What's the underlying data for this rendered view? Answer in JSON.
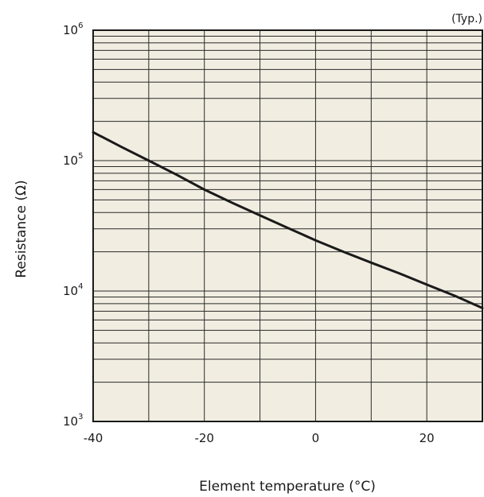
{
  "chart_data": {
    "type": "line",
    "note": "(Typ.)",
    "xlabel": "Element temperature (°C)",
    "ylabel": "Resistance (Ω)",
    "xlim": [
      -40,
      30
    ],
    "ylim": [
      1000,
      1000000
    ],
    "y_scale": "log",
    "grid": true,
    "background_color": "#f1ede1",
    "line_color": "#1a1a1a",
    "x_ticks": [
      {
        "value": -40,
        "label": "-40"
      },
      {
        "value": -20,
        "label": "-20"
      },
      {
        "value": 0,
        "label": "0"
      },
      {
        "value": 20,
        "label": "20"
      }
    ],
    "y_ticks": [
      {
        "value": 1000,
        "base": "10",
        "exp": "3"
      },
      {
        "value": 10000,
        "base": "10",
        "exp": "4"
      },
      {
        "value": 100000,
        "base": "10",
        "exp": "5"
      },
      {
        "value": 1000000,
        "base": "10",
        "exp": "6"
      }
    ],
    "series": [
      {
        "x": [
          -40,
          -35,
          -30,
          -25,
          -20,
          -15,
          -10,
          -5,
          0,
          5,
          10,
          15,
          20,
          25,
          30
        ],
        "y": [
          165000,
          128000,
          100000,
          78000,
          60000,
          47500,
          38000,
          30500,
          24500,
          20000,
          16500,
          13700,
          11200,
          9200,
          7400
        ]
      }
    ]
  }
}
